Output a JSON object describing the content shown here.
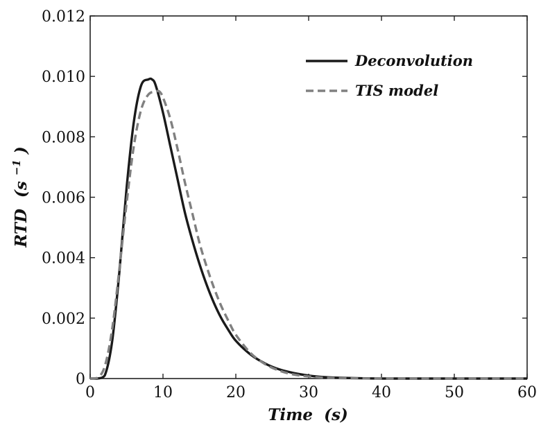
{
  "chart_data": {
    "type": "line",
    "xlabel": "Time (s)",
    "xlabel_parts": {
      "main": "Time",
      "unit": "(s)"
    },
    "ylabel": "RTD (s⁻¹)",
    "ylabel_parts": {
      "main": "RTD",
      "unit_open": "(s",
      "unit_exp": "−1",
      "unit_close": ")"
    },
    "xlim": [
      0,
      60
    ],
    "ylim": [
      0,
      0.012
    ],
    "xticks": [
      0,
      10,
      20,
      30,
      40,
      50,
      60
    ],
    "yticks": [
      0,
      0.002,
      0.004,
      0.006,
      0.008,
      0.01,
      0.012
    ],
    "xtick_labels": [
      "0",
      "10",
      "20",
      "30",
      "40",
      "50",
      "60"
    ],
    "ytick_labels": [
      "0",
      "0.002",
      "0.004",
      "0.006",
      "0.008",
      "0.010",
      "0.012"
    ],
    "grid": false,
    "legend_position": "top-right",
    "series": [
      {
        "name": "Deconvolution",
        "color": "#1a1a1a",
        "style": "solid",
        "x": [
          0,
          1,
          2,
          3,
          4,
          5,
          6,
          7,
          8,
          8.5,
          9,
          10,
          11,
          12,
          13,
          14,
          15,
          16,
          17,
          18,
          19,
          20,
          22,
          24,
          26,
          28,
          30,
          32,
          35,
          40,
          45,
          50,
          55,
          60
        ],
        "y": [
          0,
          0,
          0.0001,
          0.0012,
          0.0035,
          0.0063,
          0.0085,
          0.0097,
          0.0099,
          0.0099,
          0.0097,
          0.0088,
          0.0077,
          0.0066,
          0.0055,
          0.0046,
          0.0038,
          0.0031,
          0.0025,
          0.002,
          0.0016,
          0.00125,
          0.0008,
          0.0005,
          0.0003,
          0.00018,
          0.0001,
          5e-05,
          2e-05,
          0,
          0,
          0,
          0,
          0
        ]
      },
      {
        "name": "TIS model",
        "color": "#808080",
        "style": "dashed",
        "x": [
          0,
          1,
          2,
          3,
          4,
          5,
          6,
          7,
          8,
          9,
          9.5,
          10,
          11,
          12,
          13,
          14,
          15,
          16,
          17,
          18,
          19,
          20,
          22,
          24,
          26,
          28,
          30,
          32,
          35,
          40,
          45,
          50,
          55,
          60
        ],
        "y": [
          0,
          2e-05,
          0.0004,
          0.0016,
          0.0036,
          0.0058,
          0.0077,
          0.0089,
          0.0094,
          0.0095,
          0.0095,
          0.0093,
          0.0086,
          0.0076,
          0.0065,
          0.0055,
          0.0045,
          0.0037,
          0.003,
          0.0024,
          0.0019,
          0.00145,
          0.00085,
          0.00048,
          0.00026,
          0.00013,
          7e-05,
          3e-05,
          1e-05,
          0,
          0,
          0,
          0,
          0
        ]
      }
    ]
  }
}
